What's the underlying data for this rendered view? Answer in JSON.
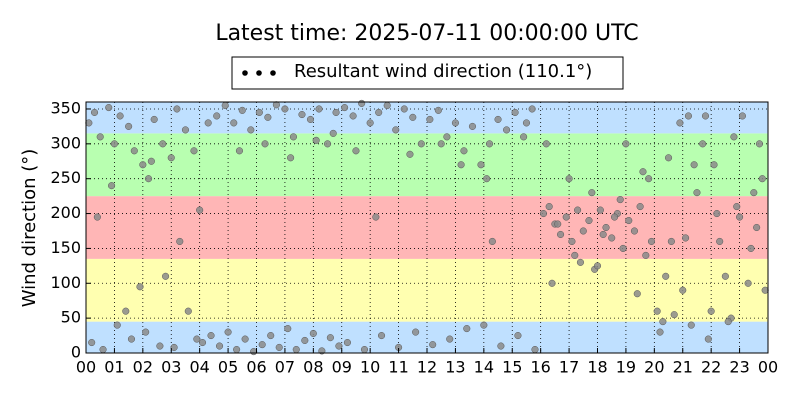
{
  "chart_data": {
    "type": "scatter",
    "title": "Latest time: 2025-07-11 00:00:00 UTC",
    "y_label": "Wind direction (°)",
    "xlim": [
      0,
      24
    ],
    "ylim": [
      0,
      360
    ],
    "xticks": [
      {
        "value": 0,
        "label": "00"
      },
      {
        "value": 1,
        "label": "01"
      },
      {
        "value": 2,
        "label": "02"
      },
      {
        "value": 3,
        "label": "03"
      },
      {
        "value": 4,
        "label": "04"
      },
      {
        "value": 5,
        "label": "05"
      },
      {
        "value": 6,
        "label": "06"
      },
      {
        "value": 7,
        "label": "07"
      },
      {
        "value": 8,
        "label": "08"
      },
      {
        "value": 9,
        "label": "09"
      },
      {
        "value": 10,
        "label": "10"
      },
      {
        "value": 11,
        "label": "11"
      },
      {
        "value": 12,
        "label": "12"
      },
      {
        "value": 13,
        "label": "13"
      },
      {
        "value": 14,
        "label": "14"
      },
      {
        "value": 15,
        "label": "15"
      },
      {
        "value": 16,
        "label": "16"
      },
      {
        "value": 17,
        "label": "17"
      },
      {
        "value": 18,
        "label": "18"
      },
      {
        "value": 19,
        "label": "19"
      },
      {
        "value": 20,
        "label": "20"
      },
      {
        "value": 21,
        "label": "21"
      },
      {
        "value": 22,
        "label": "22"
      },
      {
        "value": 23,
        "label": "23"
      },
      {
        "value": 24,
        "label": "00"
      }
    ],
    "yticks": [
      0,
      50,
      100,
      150,
      200,
      250,
      300,
      350
    ],
    "grid": true,
    "legend": "top",
    "legend_marker_color": "#000000",
    "bands": [
      {
        "from": 0,
        "to": 45,
        "color": "#bfe0ff"
      },
      {
        "from": 45,
        "to": 135,
        "color": "#ffffb0"
      },
      {
        "from": 135,
        "to": 225,
        "color": "#ffb6b6"
      },
      {
        "from": 225,
        "to": 315,
        "color": "#b8ffb0"
      },
      {
        "from": 315,
        "to": 360,
        "color": "#bfe0ff"
      }
    ],
    "series": [
      {
        "name": "Resultant wind direction (110.1°)",
        "color": "#8a8a8a",
        "x": [
          0.1,
          0.3,
          0.5,
          0.8,
          1.0,
          1.2,
          1.5,
          1.7,
          2.0,
          2.2,
          2.4,
          2.7,
          3.0,
          3.2,
          3.5,
          3.8,
          4.0,
          4.3,
          0.2,
          0.6,
          1.1,
          1.6,
          2.1,
          2.6,
          3.1,
          3.6,
          4.1,
          0.4,
          0.9,
          1.4,
          1.9,
          2.3,
          2.8,
          3.3,
          3.9,
          4.4,
          4.6,
          4.9,
          5.2,
          5.5,
          5.8,
          6.1,
          6.4,
          6.7,
          7.0,
          7.3,
          7.6,
          7.9,
          8.2,
          8.5,
          8.8,
          4.7,
          5.0,
          5.3,
          5.6,
          5.9,
          6.2,
          6.5,
          6.8,
          7.1,
          7.4,
          7.7,
          8.0,
          8.3,
          8.6,
          8.9,
          5.4,
          6.3,
          7.2,
          8.1,
          8.7,
          9.1,
          9.4,
          9.7,
          10.0,
          10.3,
          10.6,
          10.9,
          11.2,
          11.5,
          11.8,
          12.1,
          12.4,
          12.7,
          13.0,
          13.3,
          13.6,
          13.9,
          14.2,
          14.5,
          14.8,
          15.1,
          15.4,
          15.7,
          9.2,
          9.8,
          10.4,
          11.0,
          11.6,
          12.2,
          12.8,
          13.4,
          14.0,
          14.6,
          15.2,
          15.8,
          9.5,
          10.2,
          11.4,
          12.5,
          13.2,
          14.1,
          14.3,
          15.5,
          16.1,
          16.3,
          16.5,
          16.7,
          16.9,
          17.1,
          17.3,
          17.5,
          17.7,
          17.9,
          18.1,
          18.3,
          18.5,
          18.7,
          18.9,
          19.1,
          19.3,
          19.5,
          19.7,
          19.9,
          20.1,
          20.3,
          20.5,
          20.7,
          20.9,
          21.1,
          21.3,
          21.5,
          21.7,
          21.9,
          22.1,
          22.3,
          22.5,
          22.7,
          22.9,
          23.1,
          23.3,
          23.5,
          23.7,
          23.9,
          16.2,
          16.6,
          17.0,
          17.4,
          17.8,
          18.2,
          18.6,
          19.0,
          19.4,
          19.8,
          20.2,
          20.6,
          21.0,
          21.4,
          21.8,
          22.2,
          22.6,
          23.0,
          23.4,
          23.8,
          16.4,
          17.2,
          18.0,
          18.8,
          19.6,
          20.4,
          21.2,
          22.0,
          22.8,
          23.6
        ],
        "values": [
          330,
          345,
          310,
          352,
          300,
          340,
          325,
          290,
          270,
          250,
          335,
          300,
          280,
          350,
          320,
          290,
          205,
          330,
          15,
          5,
          40,
          20,
          30,
          10,
          8,
          60,
          15,
          195,
          240,
          60,
          95,
          275,
          110,
          160,
          20,
          25,
          340,
          355,
          330,
          348,
          320,
          345,
          338,
          356,
          350,
          310,
          342,
          335,
          350,
          300,
          345,
          10,
          30,
          5,
          20,
          2,
          12,
          25,
          8,
          35,
          5,
          18,
          28,
          3,
          22,
          10,
          290,
          300,
          280,
          305,
          315,
          352,
          340,
          358,
          330,
          345,
          355,
          320,
          350,
          338,
          300,
          335,
          348,
          310,
          330,
          290,
          325,
          270,
          300,
          335,
          320,
          345,
          310,
          350,
          15,
          5,
          25,
          8,
          30,
          12,
          20,
          35,
          40,
          10,
          25,
          5,
          290,
          195,
          285,
          300,
          270,
          250,
          160,
          330,
          200,
          210,
          185,
          170,
          195,
          160,
          205,
          175,
          190,
          120,
          205,
          180,
          165,
          200,
          150,
          190,
          175,
          210,
          140,
          160,
          60,
          45,
          280,
          55,
          330,
          165,
          40,
          230,
          300,
          20,
          270,
          160,
          110,
          50,
          210,
          340,
          100,
          230,
          300,
          90,
          300,
          185,
          250,
          130,
          230,
          170,
          195,
          300,
          85,
          250,
          30,
          160,
          90,
          270,
          340,
          200,
          45,
          195,
          150,
          250,
          100,
          140,
          125,
          220,
          260,
          110,
          340,
          60,
          310,
          180
        ]
      }
    ]
  }
}
